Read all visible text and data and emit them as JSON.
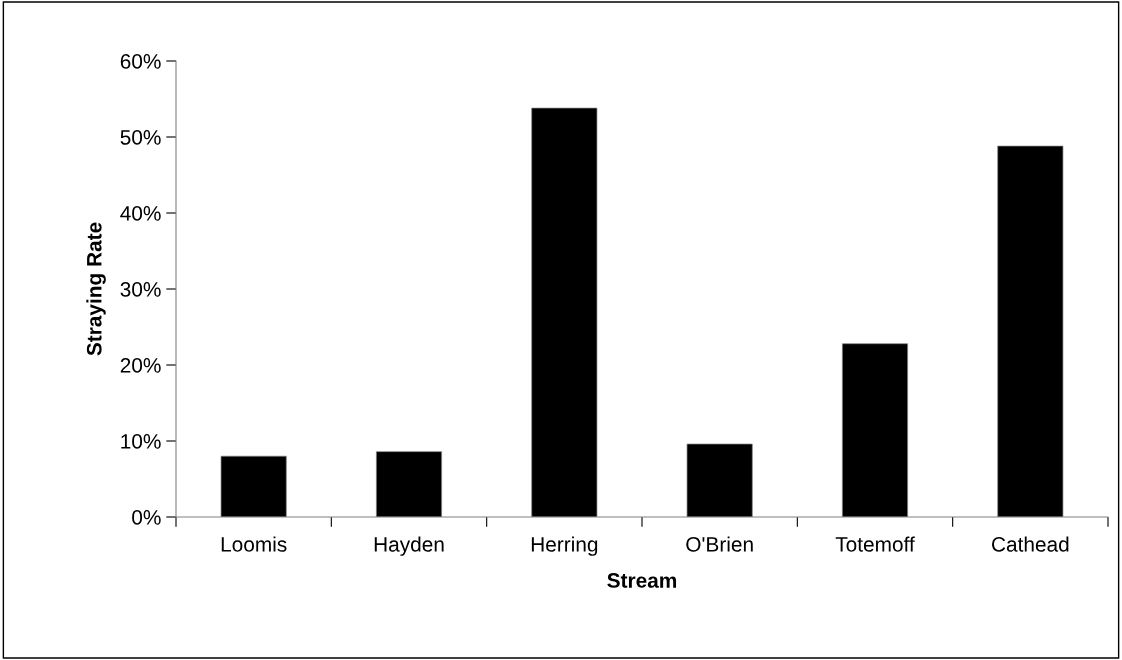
{
  "chart_data": {
    "type": "bar",
    "xlabel": "Stream",
    "ylabel": "Straying Rate",
    "categories": [
      "Loomis",
      "Hayden",
      "Herring",
      "O'Brien",
      "Totemoff",
      "Cathead"
    ],
    "values": [
      8.0,
      8.6,
      53.8,
      9.6,
      22.8,
      48.8
    ],
    "color": "#000000",
    "ylim": [
      0,
      60
    ],
    "yticks": [
      {
        "value": 0,
        "label": "0%"
      },
      {
        "value": 10,
        "label": "10%"
      },
      {
        "value": 20,
        "label": "20%"
      },
      {
        "value": 30,
        "label": "30%"
      },
      {
        "value": 40,
        "label": "40%"
      },
      {
        "value": 50,
        "label": "50%"
      },
      {
        "value": 60,
        "label": "60%"
      }
    ],
    "grid": false,
    "legend": false
  }
}
